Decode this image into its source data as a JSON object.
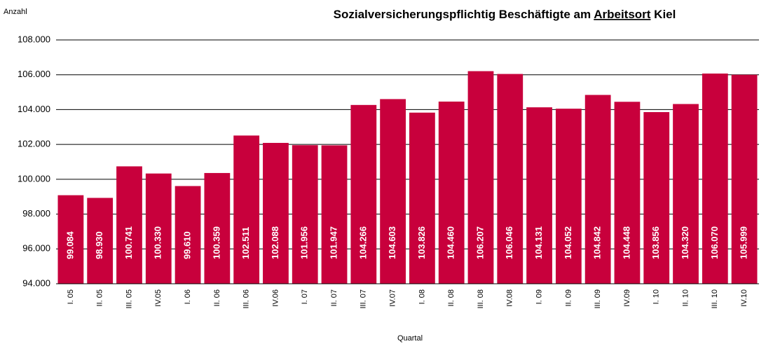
{
  "chart_data": {
    "type": "bar",
    "title_parts": [
      "Sozialversicherungspflichtig Beschäftigte am ",
      "Arbeitsort",
      " Kiel"
    ],
    "y_axis_label": "Anzahl",
    "x_axis_label": "Quartal",
    "categories": [
      "I. 05",
      "II. 05",
      "III. 05",
      "IV.05",
      "I. 06",
      "II. 06",
      "III. 06",
      "IV.06",
      "I. 07",
      "II. 07",
      "III. 07",
      "IV.07",
      "I. 08",
      "II. 08",
      "III. 08",
      "IV.08",
      "I. 09",
      "II. 09",
      "III. 09",
      "IV.09",
      "I. 10",
      "II. 10",
      "III. 10",
      "IV.10"
    ],
    "values": [
      99084,
      98930,
      100741,
      100330,
      99610,
      100359,
      102511,
      102088,
      101956,
      101947,
      104266,
      104603,
      103826,
      104460,
      106207,
      106046,
      104131,
      104052,
      104842,
      104448,
      103856,
      104320,
      106070,
      105999
    ],
    "value_labels": [
      "99.084",
      "98.930",
      "100.741",
      "100.330",
      "99.610",
      "100.359",
      "102.511",
      "102.088",
      "101.956",
      "101.947",
      "104.266",
      "104.603",
      "103.826",
      "104.460",
      "106.207",
      "106.046",
      "104.131",
      "104.052",
      "104.842",
      "104.448",
      "103.856",
      "104.320",
      "106.070",
      "105.999"
    ],
    "color": "#c8003c",
    "ylim": [
      94000,
      108000
    ],
    "yticks": [
      {
        "value": 94000,
        "label": "94.000"
      },
      {
        "value": 96000,
        "label": "96.000"
      },
      {
        "value": 98000,
        "label": "98.000"
      },
      {
        "value": 100000,
        "label": "100.000"
      },
      {
        "value": 102000,
        "label": "102.000"
      },
      {
        "value": 104000,
        "label": "104.000"
      },
      {
        "value": 106000,
        "label": "106.000"
      },
      {
        "value": 108000,
        "label": "108.000"
      }
    ],
    "grid": true
  }
}
